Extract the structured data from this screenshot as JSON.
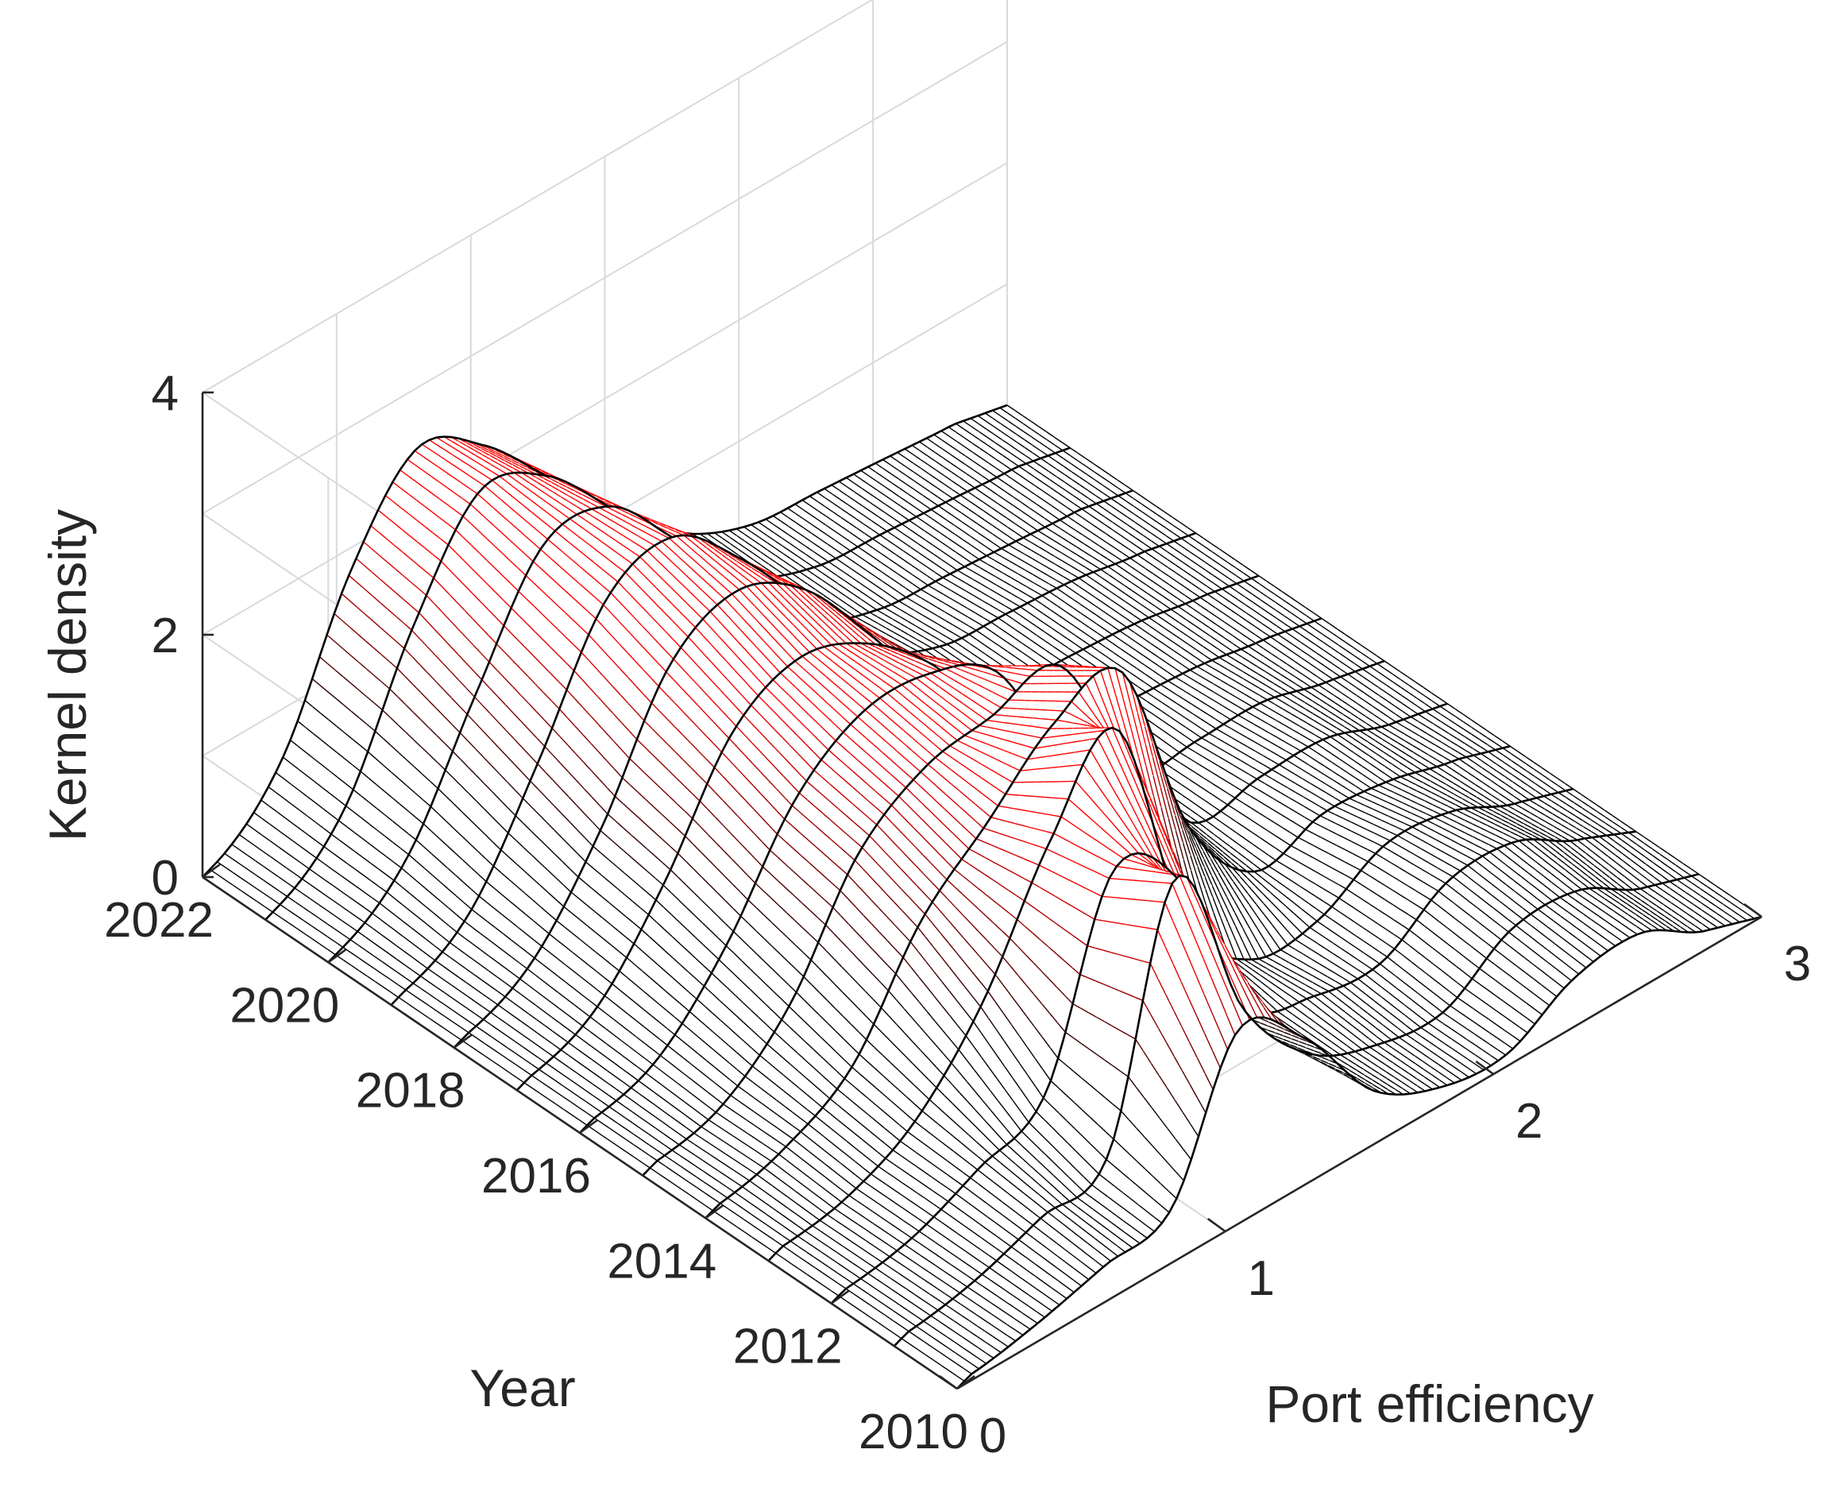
{
  "chart_data": {
    "type": "surface",
    "style": "3D waterfall mesh; each year is a black kernel-density curve, mesh segments are red where density is high and black where low",
    "xlabel": "Port efficiency",
    "ylabel": "Year",
    "zlabel": "Kernel density",
    "xlim": [
      0,
      3
    ],
    "ylim": [
      2010,
      2022
    ],
    "zlim": [
      0,
      4
    ],
    "x_ticks": [
      "0",
      "1",
      "2",
      "3"
    ],
    "y_ticks": [
      "2010",
      "2012",
      "2014",
      "2016",
      "2018",
      "2020",
      "2022"
    ],
    "z_ticks": [
      "0",
      "2",
      "4"
    ],
    "grid": true,
    "colors": {
      "high_density": "#ff0000",
      "low_density": "#000000",
      "grid": "#d9d9d9",
      "axis": "#262626"
    },
    "x": [
      0.05,
      0.3,
      0.55,
      0.8,
      1.05,
      1.3,
      1.55,
      1.8,
      2.05,
      2.3,
      2.55,
      2.8
    ],
    "series": [
      {
        "year": 2010,
        "values": [
          0.05,
          0.15,
          0.3,
          0.45,
          1.6,
          1.2,
          0.45,
          0.15,
          0.1,
          0.4,
          0.45,
          0.15
        ]
      },
      {
        "year": 2011,
        "values": [
          0.05,
          0.15,
          0.35,
          0.55,
          2.5,
          1.1,
          0.4,
          0.15,
          0.1,
          0.45,
          0.45,
          0.15
        ]
      },
      {
        "year": 2012,
        "values": [
          0.05,
          0.15,
          0.4,
          0.7,
          2.2,
          1.8,
          0.45,
          0.2,
          0.15,
          0.5,
          0.5,
          0.2
        ]
      },
      {
        "year": 2013,
        "values": [
          0.05,
          0.15,
          0.45,
          1.1,
          2.1,
          2.7,
          0.8,
          0.15,
          0.15,
          0.45,
          0.4,
          0.15
        ]
      },
      {
        "year": 2014,
        "values": [
          0.05,
          0.2,
          0.55,
          1.4,
          1.9,
          2.4,
          2.5,
          0.9,
          0.2,
          0.35,
          0.3,
          0.15
        ]
      },
      {
        "year": 2015,
        "values": [
          0.05,
          0.2,
          0.7,
          1.6,
          2.0,
          2.1,
          2.2,
          1.1,
          0.25,
          0.3,
          0.3,
          0.1
        ]
      },
      {
        "year": 2016,
        "values": [
          0.05,
          0.25,
          0.85,
          1.7,
          2.1,
          2.1,
          1.8,
          0.8,
          0.25,
          0.25,
          0.25,
          0.1
        ]
      },
      {
        "year": 2017,
        "values": [
          0.05,
          0.3,
          1.0,
          1.9,
          2.2,
          2.0,
          1.5,
          0.7,
          0.3,
          0.25,
          0.2,
          0.1
        ]
      },
      {
        "year": 2018,
        "values": [
          0.05,
          0.35,
          1.1,
          2.1,
          2.4,
          2.1,
          1.4,
          0.6,
          0.3,
          0.25,
          0.2,
          0.1
        ]
      },
      {
        "year": 2019,
        "values": [
          0.05,
          0.4,
          1.3,
          2.3,
          2.5,
          2.0,
          1.3,
          0.6,
          0.3,
          0.25,
          0.2,
          0.1
        ]
      },
      {
        "year": 2020,
        "values": [
          0.05,
          0.5,
          1.5,
          2.4,
          2.4,
          1.8,
          1.2,
          0.5,
          0.25,
          0.2,
          0.15,
          0.1
        ]
      },
      {
        "year": 2021,
        "values": [
          0.05,
          0.55,
          1.7,
          2.5,
          2.3,
          1.7,
          1.1,
          0.5,
          0.25,
          0.2,
          0.15,
          0.1
        ]
      },
      {
        "year": 2022,
        "values": [
          0.05,
          0.6,
          1.8,
          2.5,
          2.2,
          1.6,
          1.0,
          0.5,
          0.25,
          0.2,
          0.15,
          0.1
        ]
      }
    ]
  }
}
